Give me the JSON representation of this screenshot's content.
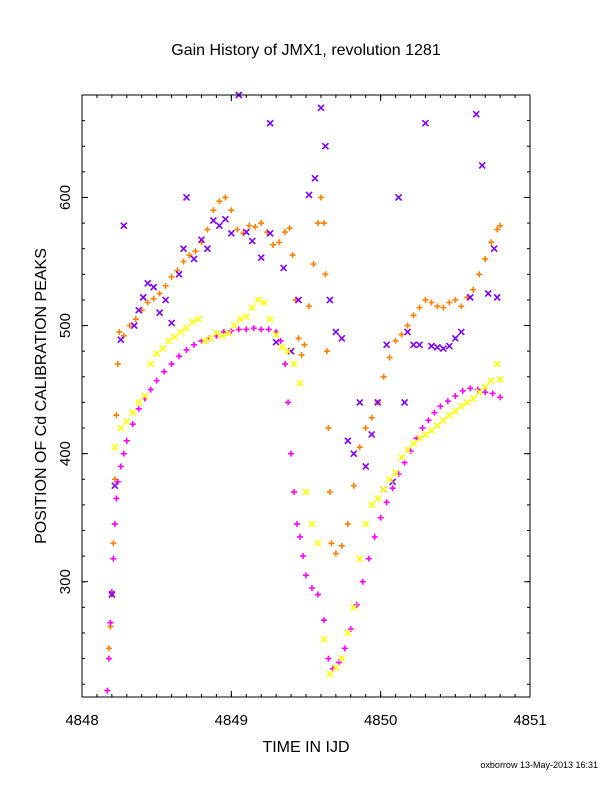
{
  "chart_data": {
    "type": "scatter",
    "title": "Gain History of JMX1, revolution 1281",
    "xlabel": "TIME IN IJD",
    "ylabel": "POSITION OF Cd CALIBRATION PEAKS",
    "xlim": [
      4848,
      4851
    ],
    "ylim": [
      210,
      680
    ],
    "xticks": [
      4848,
      4849,
      4850,
      4851
    ],
    "xtick_labels": [
      "4848",
      "4849",
      "4850",
      "4851"
    ],
    "yticks": [
      300,
      400,
      500,
      600
    ],
    "ytick_labels": [
      "300",
      "400",
      "500",
      "600"
    ],
    "grid": false,
    "legend": "none",
    "series": [
      {
        "color": "#ff8000",
        "marker": "plus",
        "points": [
          [
            4848.18,
            248
          ],
          [
            4848.19,
            265
          ],
          [
            4848.2,
            290
          ],
          [
            4848.21,
            330
          ],
          [
            4848.22,
            380
          ],
          [
            4848.23,
            430
          ],
          [
            4848.24,
            470
          ],
          [
            4848.25,
            495
          ],
          [
            4848.28,
            492
          ],
          [
            4848.32,
            500
          ],
          [
            4848.36,
            505
          ],
          [
            4848.4,
            512
          ],
          [
            4848.44,
            518
          ],
          [
            4848.48,
            521
          ],
          [
            4848.52,
            525
          ],
          [
            4848.56,
            531
          ],
          [
            4848.6,
            538
          ],
          [
            4848.64,
            543
          ],
          [
            4848.68,
            550
          ],
          [
            4848.72,
            555
          ],
          [
            4848.76,
            558
          ],
          [
            4848.8,
            565
          ],
          [
            4848.84,
            575
          ],
          [
            4848.88,
            590
          ],
          [
            4848.92,
            597
          ],
          [
            4848.96,
            600
          ],
          [
            4849.0,
            590
          ],
          [
            4849.04,
            575
          ],
          [
            4849.08,
            572
          ],
          [
            4849.12,
            578
          ],
          [
            4849.16,
            577
          ],
          [
            4849.2,
            580
          ],
          [
            4849.24,
            573
          ],
          [
            4849.28,
            563
          ],
          [
            4849.32,
            565
          ],
          [
            4849.36,
            573
          ],
          [
            4849.39,
            576
          ],
          [
            4849.41,
            555
          ],
          [
            4849.43,
            520
          ],
          [
            4849.45,
            490
          ],
          [
            4849.47,
            477
          ],
          [
            4849.49,
            485
          ],
          [
            4849.52,
            515
          ],
          [
            4849.55,
            548
          ],
          [
            4849.58,
            580
          ],
          [
            4849.6,
            600
          ],
          [
            4849.62,
            580
          ],
          [
            4849.63,
            540
          ],
          [
            4849.64,
            480
          ],
          [
            4849.65,
            420
          ],
          [
            4849.66,
            370
          ],
          [
            4849.67,
            330
          ],
          [
            4849.7,
            322
          ],
          [
            4849.74,
            328
          ],
          [
            4849.78,
            345
          ],
          [
            4849.82,
            375
          ],
          [
            4849.86,
            405
          ],
          [
            4849.9,
            420
          ],
          [
            4849.94,
            428
          ],
          [
            4849.98,
            440
          ],
          [
            4850.02,
            460
          ],
          [
            4850.06,
            475
          ],
          [
            4850.1,
            488
          ],
          [
            4850.14,
            493
          ],
          [
            4850.18,
            500
          ],
          [
            4850.22,
            508
          ],
          [
            4850.26,
            514
          ],
          [
            4850.3,
            520
          ],
          [
            4850.34,
            518
          ],
          [
            4850.38,
            515
          ],
          [
            4850.42,
            514
          ],
          [
            4850.46,
            518
          ],
          [
            4850.5,
            520
          ],
          [
            4850.54,
            515
          ],
          [
            4850.58,
            522
          ],
          [
            4850.62,
            528
          ],
          [
            4850.66,
            540
          ],
          [
            4850.7,
            552
          ],
          [
            4850.74,
            565
          ],
          [
            4850.78,
            575
          ],
          [
            4850.8,
            578
          ]
        ]
      },
      {
        "color": "#ff00ff",
        "marker": "plus",
        "points": [
          [
            4848.17,
            215
          ],
          [
            4848.18,
            240
          ],
          [
            4848.19,
            268
          ],
          [
            4848.2,
            292
          ],
          [
            4848.21,
            318
          ],
          [
            4848.22,
            345
          ],
          [
            4848.23,
            365
          ],
          [
            4848.24,
            378
          ],
          [
            4848.26,
            390
          ],
          [
            4848.28,
            400
          ],
          [
            4848.3,
            410
          ],
          [
            4848.34,
            423
          ],
          [
            4848.38,
            435
          ],
          [
            4848.42,
            443
          ],
          [
            4848.46,
            450
          ],
          [
            4848.5,
            457
          ],
          [
            4848.55,
            464
          ],
          [
            4848.6,
            470
          ],
          [
            4848.65,
            476
          ],
          [
            4848.7,
            481
          ],
          [
            4848.75,
            485
          ],
          [
            4848.8,
            488
          ],
          [
            4848.85,
            490
          ],
          [
            4848.9,
            492
          ],
          [
            4848.95,
            495
          ],
          [
            4849.0,
            496
          ],
          [
            4849.05,
            497
          ],
          [
            4849.1,
            497
          ],
          [
            4849.15,
            498
          ],
          [
            4849.2,
            497
          ],
          [
            4849.25,
            497
          ],
          [
            4849.3,
            495
          ],
          [
            4849.33,
            488
          ],
          [
            4849.36,
            470
          ],
          [
            4849.38,
            440
          ],
          [
            4849.4,
            400
          ],
          [
            4849.42,
            370
          ],
          [
            4849.44,
            345
          ],
          [
            4849.46,
            335
          ],
          [
            4849.48,
            320
          ],
          [
            4849.5,
            305
          ],
          [
            4849.54,
            295
          ],
          [
            4849.58,
            290
          ],
          [
            4849.62,
            270
          ],
          [
            4849.65,
            240
          ],
          [
            4849.68,
            232
          ],
          [
            4849.72,
            237
          ],
          [
            4849.76,
            248
          ],
          [
            4849.8,
            263
          ],
          [
            4849.84,
            282
          ],
          [
            4849.88,
            300
          ],
          [
            4849.92,
            318
          ],
          [
            4849.96,
            335
          ],
          [
            4850.0,
            350
          ],
          [
            4850.04,
            362
          ],
          [
            4850.08,
            373
          ],
          [
            4850.12,
            384
          ],
          [
            4850.16,
            393
          ],
          [
            4850.2,
            402
          ],
          [
            4850.24,
            412
          ],
          [
            4850.28,
            420
          ],
          [
            4850.32,
            426
          ],
          [
            4850.36,
            432
          ],
          [
            4850.4,
            437
          ],
          [
            4850.45,
            441
          ],
          [
            4850.5,
            445
          ],
          [
            4850.55,
            449
          ],
          [
            4850.6,
            451
          ],
          [
            4850.65,
            450
          ],
          [
            4850.7,
            448
          ],
          [
            4850.75,
            447
          ],
          [
            4850.8,
            444
          ]
        ]
      },
      {
        "color": "#7f00ff",
        "marker": "x",
        "points": [
          [
            4848.2,
            290
          ],
          [
            4848.22,
            375
          ],
          [
            4848.26,
            489
          ],
          [
            4848.28,
            578
          ],
          [
            4848.35,
            500
          ],
          [
            4848.38,
            512
          ],
          [
            4848.41,
            522
          ],
          [
            4848.44,
            533
          ],
          [
            4848.48,
            530
          ],
          [
            4848.52,
            510
          ],
          [
            4848.56,
            520
          ],
          [
            4848.6,
            502
          ],
          [
            4848.65,
            540
          ],
          [
            4848.68,
            560
          ],
          [
            4848.7,
            600
          ],
          [
            4848.75,
            552
          ],
          [
            4848.8,
            567
          ],
          [
            4848.84,
            560
          ],
          [
            4848.88,
            582
          ],
          [
            4848.92,
            578
          ],
          [
            4848.96,
            583
          ],
          [
            4849.0,
            572
          ],
          [
            4849.05,
            680
          ],
          [
            4849.1,
            573
          ],
          [
            4849.14,
            566
          ],
          [
            4849.2,
            553
          ],
          [
            4849.26,
            572
          ],
          [
            4849.26,
            658
          ],
          [
            4849.3,
            487
          ],
          [
            4849.35,
            545
          ],
          [
            4849.4,
            480
          ],
          [
            4849.45,
            520
          ],
          [
            4849.52,
            602
          ],
          [
            4849.56,
            615
          ],
          [
            4849.6,
            670
          ],
          [
            4849.63,
            640
          ],
          [
            4849.66,
            520
          ],
          [
            4849.7,
            495
          ],
          [
            4849.74,
            490
          ],
          [
            4849.78,
            410
          ],
          [
            4849.82,
            400
          ],
          [
            4849.86,
            440
          ],
          [
            4849.9,
            390
          ],
          [
            4849.94,
            415
          ],
          [
            4849.98,
            440
          ],
          [
            4850.02,
            372
          ],
          [
            4850.04,
            485
          ],
          [
            4850.08,
            378
          ],
          [
            4850.12,
            600
          ],
          [
            4850.16,
            440
          ],
          [
            4850.18,
            495
          ],
          [
            4850.22,
            485
          ],
          [
            4850.26,
            485
          ],
          [
            4850.3,
            658
          ],
          [
            4850.34,
            484
          ],
          [
            4850.38,
            483
          ],
          [
            4850.42,
            482
          ],
          [
            4850.46,
            484
          ],
          [
            4850.5,
            490
          ],
          [
            4850.54,
            495
          ],
          [
            4850.6,
            522
          ],
          [
            4850.64,
            665
          ],
          [
            4850.68,
            625
          ],
          [
            4850.72,
            525
          ],
          [
            4850.76,
            560
          ],
          [
            4850.78,
            522
          ]
        ]
      },
      {
        "color": "#ffff00",
        "marker": "x",
        "points": [
          [
            4848.22,
            405
          ],
          [
            4848.26,
            420
          ],
          [
            4848.3,
            425
          ],
          [
            4848.34,
            432
          ],
          [
            4848.38,
            440
          ],
          [
            4848.42,
            445
          ],
          [
            4848.46,
            470
          ],
          [
            4848.5,
            478
          ],
          [
            4848.54,
            482
          ],
          [
            4848.58,
            488
          ],
          [
            4848.62,
            491
          ],
          [
            4848.66,
            495
          ],
          [
            4848.7,
            498
          ],
          [
            4848.74,
            503
          ],
          [
            4848.78,
            505
          ],
          [
            4848.82,
            488
          ],
          [
            4848.86,
            490
          ],
          [
            4848.9,
            494
          ],
          [
            4848.94,
            492
          ],
          [
            4848.98,
            494
          ],
          [
            4849.02,
            500
          ],
          [
            4849.06,
            505
          ],
          [
            4849.1,
            507
          ],
          [
            4849.14,
            514
          ],
          [
            4849.18,
            520
          ],
          [
            4849.22,
            518
          ],
          [
            4849.26,
            505
          ],
          [
            4849.3,
            493
          ],
          [
            4849.34,
            483
          ],
          [
            4849.38,
            480
          ],
          [
            4849.42,
            470
          ],
          [
            4849.46,
            455
          ],
          [
            4849.5,
            370
          ],
          [
            4849.54,
            345
          ],
          [
            4849.58,
            330
          ],
          [
            4849.62,
            255
          ],
          [
            4849.66,
            228
          ],
          [
            4849.7,
            233
          ],
          [
            4849.74,
            240
          ],
          [
            4849.78,
            260
          ],
          [
            4849.82,
            280
          ],
          [
            4849.86,
            318
          ],
          [
            4849.9,
            345
          ],
          [
            4849.94,
            360
          ],
          [
            4849.98,
            365
          ],
          [
            4850.02,
            372
          ],
          [
            4850.06,
            380
          ],
          [
            4850.1,
            385
          ],
          [
            4850.14,
            397
          ],
          [
            4850.18,
            403
          ],
          [
            4850.22,
            408
          ],
          [
            4850.26,
            412
          ],
          [
            4850.3,
            415
          ],
          [
            4850.34,
            418
          ],
          [
            4850.38,
            422
          ],
          [
            4850.42,
            426
          ],
          [
            4850.46,
            430
          ],
          [
            4850.5,
            433
          ],
          [
            4850.54,
            437
          ],
          [
            4850.58,
            440
          ],
          [
            4850.62,
            443
          ],
          [
            4850.66,
            448
          ],
          [
            4850.7,
            452
          ],
          [
            4850.74,
            457
          ],
          [
            4850.78,
            470
          ],
          [
            4850.8,
            458
          ]
        ]
      }
    ]
  },
  "footer": "oxborrow 13-May-2013 16:31"
}
